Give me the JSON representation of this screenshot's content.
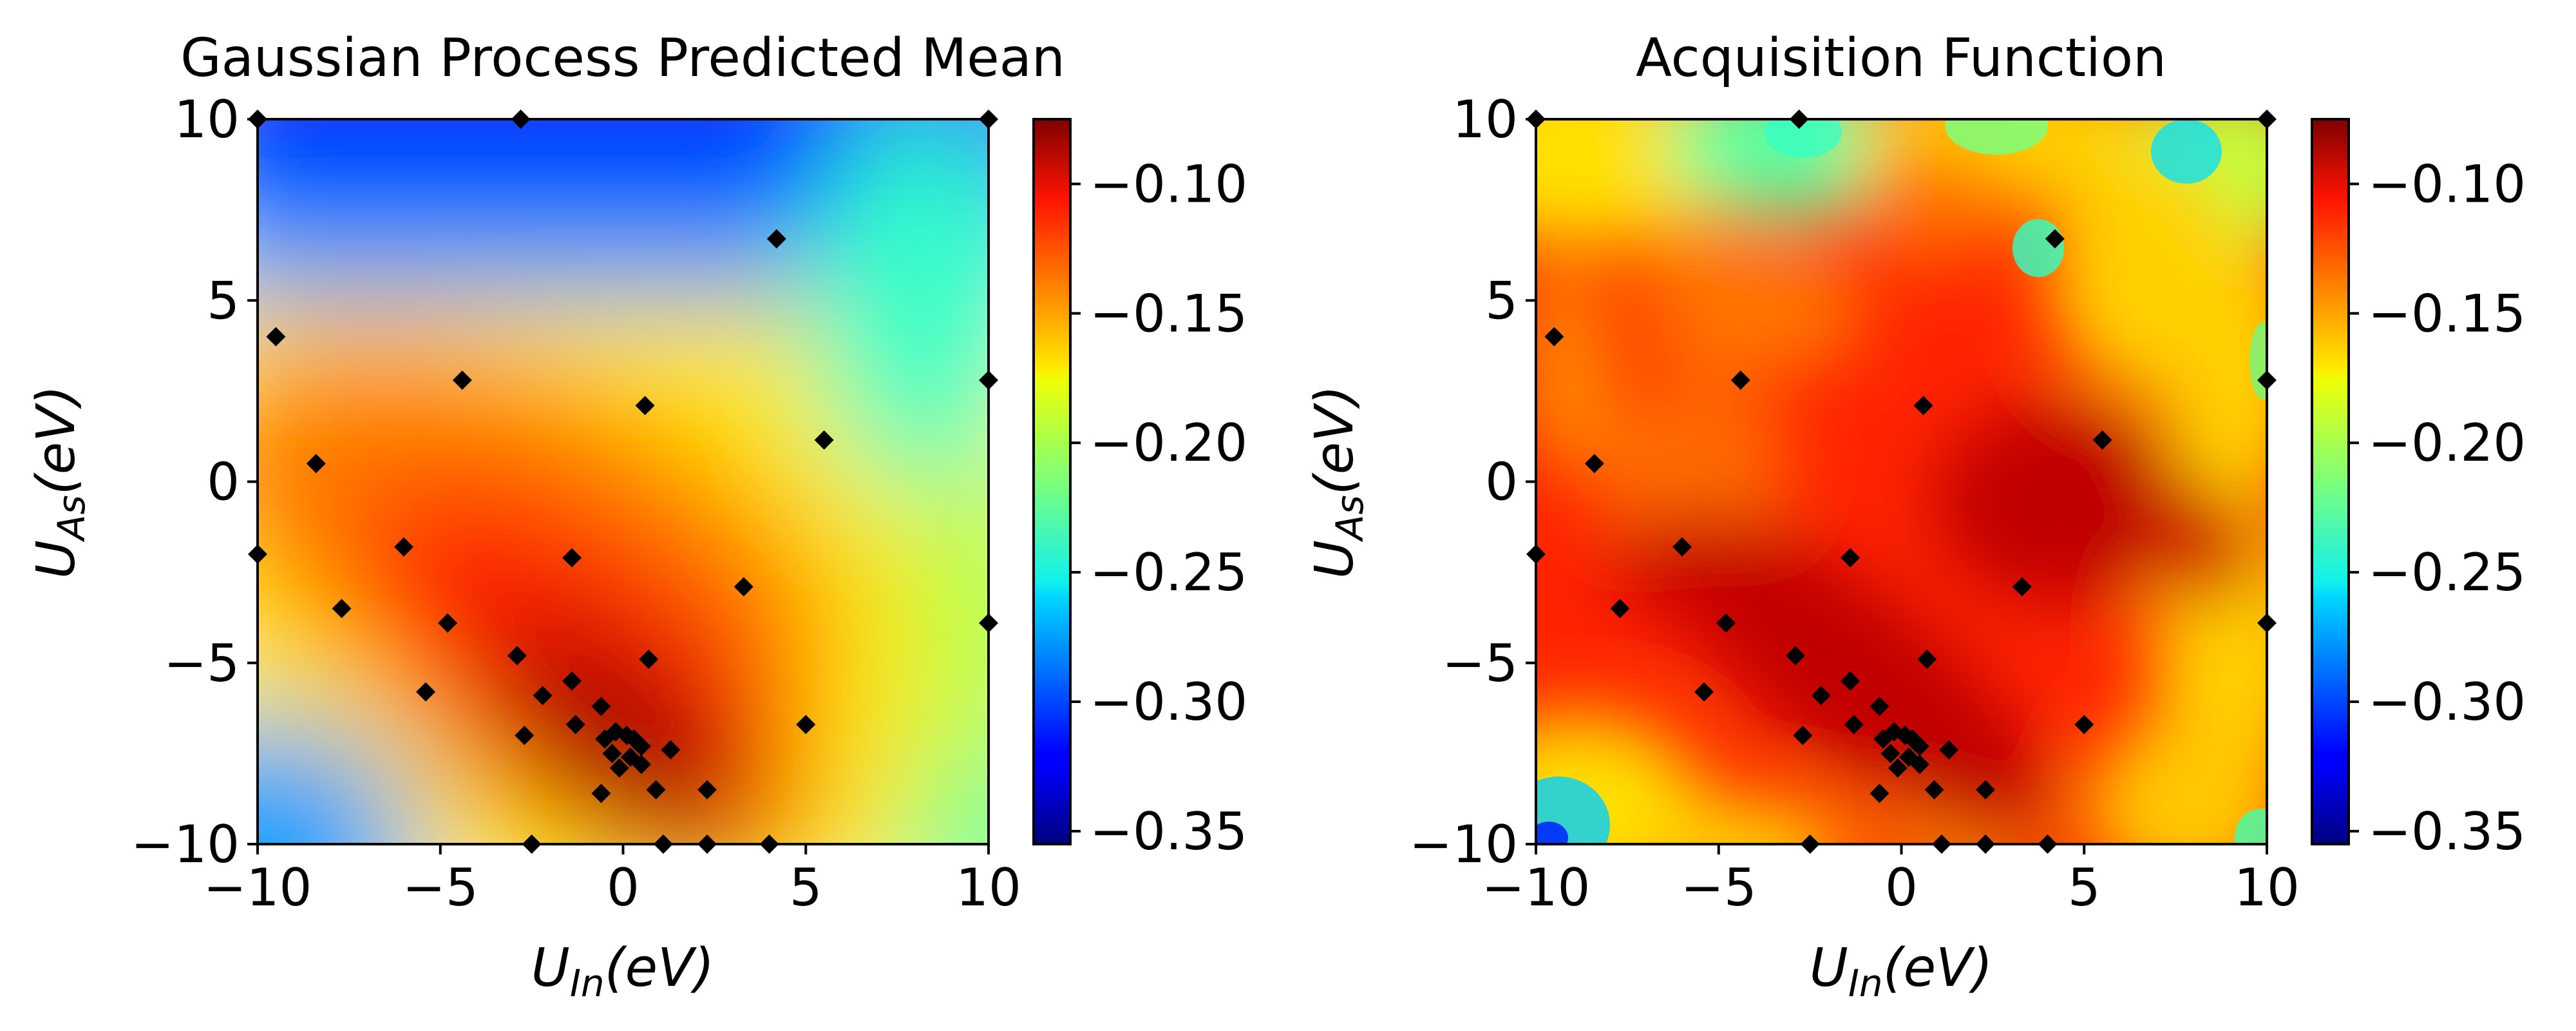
{
  "chart_data": [
    {
      "type": "heatmap",
      "title": "Gaussian Process Predicted Mean",
      "xlabel": {
        "main": "U",
        "sub": "In",
        "tail": "(eV)"
      },
      "ylabel": {
        "main": "U",
        "sub": "As",
        "tail": "(eV)"
      },
      "xlim": [
        -10,
        10
      ],
      "ylim": [
        -10,
        10
      ],
      "xticks": [
        -10,
        -5,
        0,
        5,
        10
      ],
      "yticks": [
        -10,
        -5,
        0,
        5,
        10
      ],
      "colormap": "jet",
      "colorbar": {
        "range": [
          -0.355,
          -0.075
        ],
        "ticks": [
          -0.1,
          -0.15,
          -0.2,
          -0.25,
          -0.3,
          -0.35
        ]
      },
      "grid": false,
      "points": [
        [
          -10,
          10
        ],
        [
          -2.8,
          10
        ],
        [
          10,
          10
        ],
        [
          -9.5,
          4
        ],
        [
          -4.4,
          2.8
        ],
        [
          0.6,
          2.1
        ],
        [
          4.2,
          6.7
        ],
        [
          5.5,
          1.15
        ],
        [
          10,
          2.8
        ],
        [
          -8.4,
          0.5
        ],
        [
          -10,
          -2
        ],
        [
          -6,
          -1.8
        ],
        [
          -1.4,
          -2.1
        ],
        [
          3.3,
          -2.9
        ],
        [
          -7.7,
          -3.5
        ],
        [
          -4.8,
          -3.9
        ],
        [
          -2.9,
          -4.8
        ],
        [
          0.7,
          -4.9
        ],
        [
          10,
          -3.9
        ],
        [
          -5.4,
          -5.8
        ],
        [
          -2.2,
          -5.9
        ],
        [
          -1.4,
          -5.5
        ],
        [
          -0.6,
          -6.2
        ],
        [
          -1.3,
          -6.7
        ],
        [
          -0.2,
          -6.9
        ],
        [
          0.1,
          -7.0
        ],
        [
          0.3,
          -7.1
        ],
        [
          0.5,
          -7.3
        ],
        [
          -0.5,
          -7.1
        ],
        [
          -0.3,
          -7.5
        ],
        [
          0.2,
          -7.6
        ],
        [
          0.5,
          -7.8
        ],
        [
          -0.1,
          -7.9
        ],
        [
          1.3,
          -7.4
        ],
        [
          -2.7,
          -7.0
        ],
        [
          5,
          -6.7
        ],
        [
          -0.6,
          -8.6
        ],
        [
          0.9,
          -8.5
        ],
        [
          2.3,
          -8.5
        ],
        [
          -2.5,
          -10
        ],
        [
          1.1,
          -10
        ],
        [
          2.3,
          -10
        ],
        [
          4,
          -10
        ]
      ]
    },
    {
      "type": "heatmap",
      "title": "Acquisition Function",
      "xlabel": {
        "main": "U",
        "sub": "In",
        "tail": "(eV)"
      },
      "ylabel": {
        "main": "U",
        "sub": "As",
        "tail": "(eV)"
      },
      "xlim": [
        -10,
        10
      ],
      "ylim": [
        -10,
        10
      ],
      "xticks": [
        -10,
        -5,
        0,
        5,
        10
      ],
      "yticks": [
        -10,
        -5,
        0,
        5,
        10
      ],
      "colormap": "jet",
      "colorbar": {
        "range": [
          -0.355,
          -0.075
        ],
        "ticks": [
          -0.1,
          -0.15,
          -0.2,
          -0.25,
          -0.3,
          -0.35
        ]
      },
      "grid": false,
      "points": [
        [
          -10,
          10
        ],
        [
          -2.8,
          10
        ],
        [
          10,
          10
        ],
        [
          -9.5,
          4
        ],
        [
          -4.4,
          2.8
        ],
        [
          0.6,
          2.1
        ],
        [
          4.2,
          6.7
        ],
        [
          5.5,
          1.15
        ],
        [
          10,
          2.8
        ],
        [
          -8.4,
          0.5
        ],
        [
          -10,
          -2
        ],
        [
          -6,
          -1.8
        ],
        [
          -1.4,
          -2.1
        ],
        [
          3.3,
          -2.9
        ],
        [
          -7.7,
          -3.5
        ],
        [
          -4.8,
          -3.9
        ],
        [
          -2.9,
          -4.8
        ],
        [
          0.7,
          -4.9
        ],
        [
          10,
          -3.9
        ],
        [
          -5.4,
          -5.8
        ],
        [
          -2.2,
          -5.9
        ],
        [
          -1.4,
          -5.5
        ],
        [
          -0.6,
          -6.2
        ],
        [
          -1.3,
          -6.7
        ],
        [
          -0.2,
          -6.9
        ],
        [
          0.1,
          -7.0
        ],
        [
          0.3,
          -7.1
        ],
        [
          0.5,
          -7.3
        ],
        [
          -0.5,
          -7.1
        ],
        [
          -0.3,
          -7.5
        ],
        [
          0.2,
          -7.6
        ],
        [
          0.5,
          -7.8
        ],
        [
          -0.1,
          -7.9
        ],
        [
          1.3,
          -7.4
        ],
        [
          -2.7,
          -7.0
        ],
        [
          5,
          -6.7
        ],
        [
          -0.6,
          -8.6
        ],
        [
          0.9,
          -8.5
        ],
        [
          2.3,
          -8.5
        ],
        [
          -2.5,
          -10
        ],
        [
          1.1,
          -10
        ],
        [
          2.3,
          -10
        ],
        [
          4,
          -10
        ]
      ]
    }
  ]
}
